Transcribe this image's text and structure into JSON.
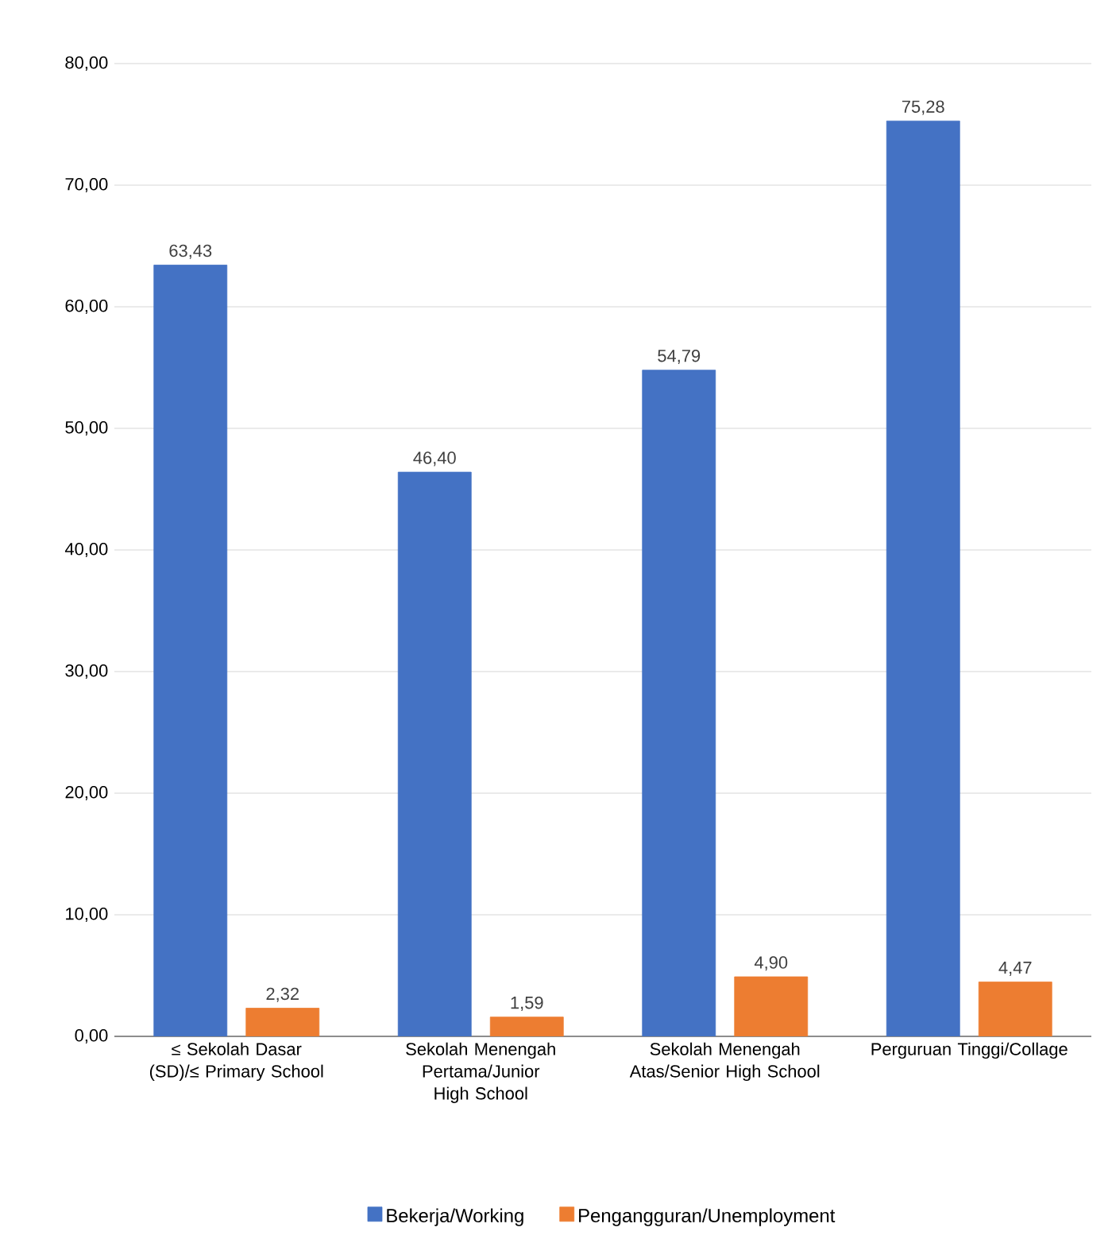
{
  "chart_data": {
    "type": "bar",
    "categories": [
      "≤ Sekolah Dasar (SD)/≤ Primary School",
      "Sekolah Menengah Pertama/Junior High School",
      "Sekolah Menengah Atas/Senior High School",
      "Perguruan Tinggi/Collage"
    ],
    "series": [
      {
        "name": "Bekerja/Working",
        "color": "#4472c4",
        "values": [
          63.43,
          46.4,
          54.79,
          75.28
        ],
        "value_labels": [
          "63,43",
          "46,40",
          "54,79",
          "75,28"
        ]
      },
      {
        "name": "Pengangguran/Unemployment",
        "color": "#ed7d31",
        "values": [
          2.32,
          1.59,
          4.9,
          4.47
        ],
        "value_labels": [
          "2,32",
          "1,59",
          "4,90",
          "4,47"
        ]
      }
    ],
    "ylim": [
      0,
      80
    ],
    "yticks": [
      {
        "value": 0,
        "label": "0,00"
      },
      {
        "value": 10,
        "label": "10,00"
      },
      {
        "value": 20,
        "label": "20,00"
      },
      {
        "value": 30,
        "label": "30,00"
      },
      {
        "value": 40,
        "label": "40,00"
      },
      {
        "value": 50,
        "label": "50,00"
      },
      {
        "value": 60,
        "label": "60,00"
      },
      {
        "value": 70,
        "label": "70,00"
      },
      {
        "value": 80,
        "label": "80,00"
      }
    ],
    "grid": "y",
    "legend": "bottom"
  }
}
